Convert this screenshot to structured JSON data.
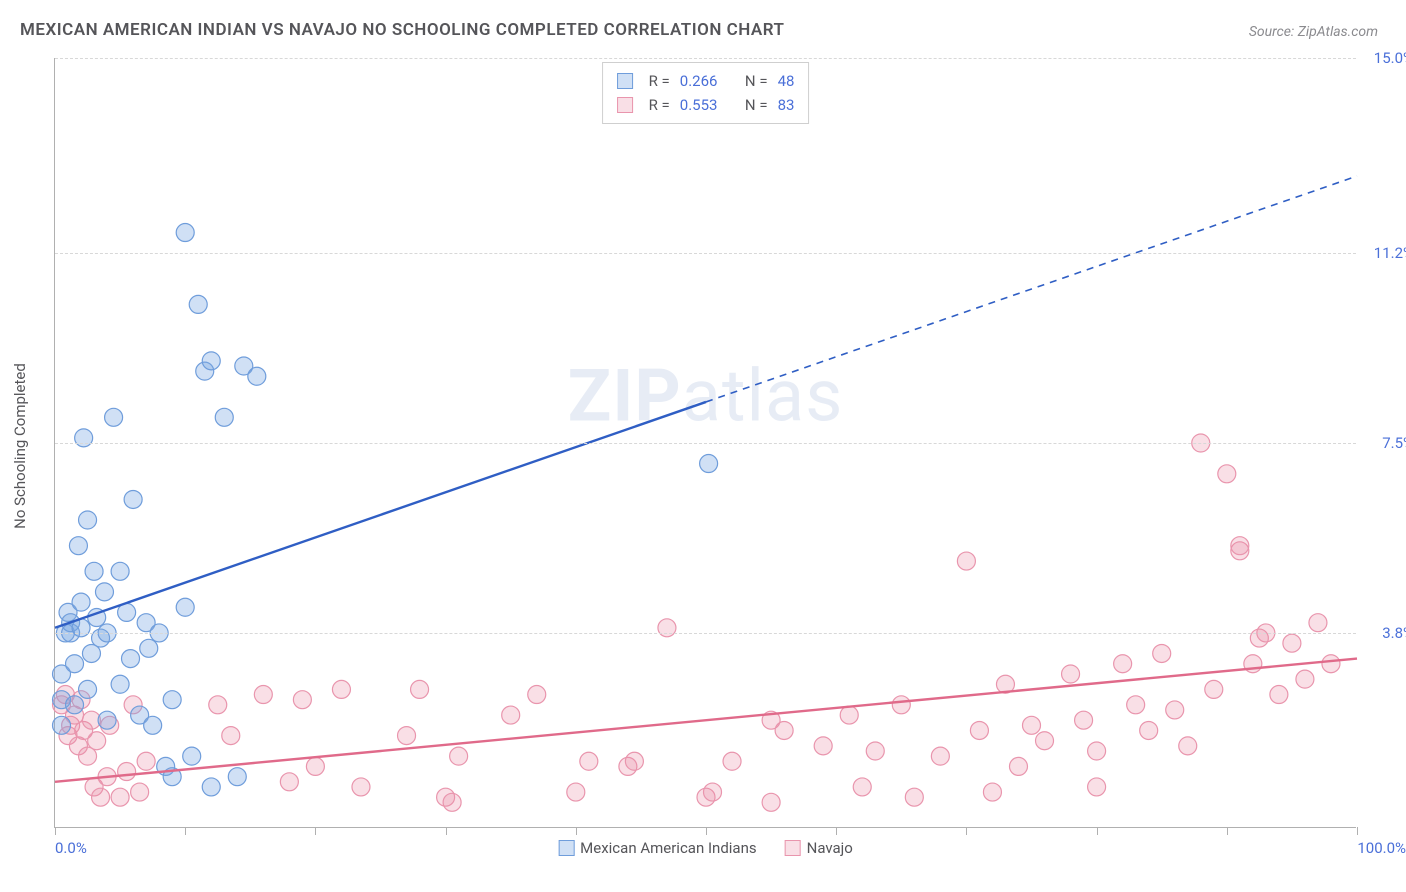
{
  "title": "MEXICAN AMERICAN INDIAN VS NAVAJO NO SCHOOLING COMPLETED CORRELATION CHART",
  "source_label": "Source: ",
  "source_name": "ZipAtlas.com",
  "y_axis_label": "No Schooling Completed",
  "watermark_a": "ZIP",
  "watermark_b": "atlas",
  "chart": {
    "type": "scatter",
    "xlim": [
      0,
      100
    ],
    "ylim": [
      0,
      15
    ],
    "x_left_label": "0.0%",
    "x_right_label": "100.0%",
    "x_tick_positions": [
      0,
      10,
      20,
      30,
      40,
      50,
      60,
      70,
      80,
      90,
      100
    ],
    "y_ticks": [
      {
        "value": 3.8,
        "label": "3.8%"
      },
      {
        "value": 7.5,
        "label": "7.5%"
      },
      {
        "value": 11.2,
        "label": "11.2%"
      },
      {
        "value": 15.0,
        "label": "15.0%"
      }
    ],
    "background_color": "#ffffff",
    "grid_color": "#d8d8d8",
    "axis_color": "#b0b0b0",
    "tick_label_color": "#4a6fd8",
    "marker_radius": 9,
    "marker_stroke_width": 1.2,
    "trend_line_width": 2.4,
    "trend_dash_width": 1.6
  },
  "series": {
    "a": {
      "name": "Mexican American Indians",
      "fill_color": "rgba(120,165,225,0.35)",
      "stroke_color": "#6f9ddb",
      "line_color": "#2f5ec4",
      "stats": {
        "R_label": "R =",
        "R": "0.266",
        "N_label": "N =",
        "N": "48"
      },
      "trend": {
        "x1": 0,
        "y1": 3.9,
        "x2": 50,
        "y2": 8.3,
        "dash_x2": 100,
        "dash_y2": 12.7
      },
      "points": [
        [
          0.5,
          3.0
        ],
        [
          0.5,
          2.5
        ],
        [
          0.5,
          2.0
        ],
        [
          0.8,
          3.8
        ],
        [
          1.0,
          4.2
        ],
        [
          1.2,
          4.0
        ],
        [
          1.2,
          3.8
        ],
        [
          1.5,
          3.2
        ],
        [
          1.5,
          2.4
        ],
        [
          1.8,
          5.5
        ],
        [
          2.0,
          4.4
        ],
        [
          2.0,
          3.9
        ],
        [
          2.2,
          7.6
        ],
        [
          2.5,
          6.0
        ],
        [
          2.5,
          2.7
        ],
        [
          2.8,
          3.4
        ],
        [
          3.0,
          5.0
        ],
        [
          3.2,
          4.1
        ],
        [
          3.5,
          3.7
        ],
        [
          3.8,
          4.6
        ],
        [
          4.0,
          2.1
        ],
        [
          4.0,
          3.8
        ],
        [
          4.5,
          8.0
        ],
        [
          5.0,
          5.0
        ],
        [
          5.0,
          2.8
        ],
        [
          5.5,
          4.2
        ],
        [
          5.8,
          3.3
        ],
        [
          6.0,
          6.4
        ],
        [
          6.5,
          2.2
        ],
        [
          7.0,
          4.0
        ],
        [
          7.2,
          3.5
        ],
        [
          7.5,
          2.0
        ],
        [
          8.0,
          3.8
        ],
        [
          8.5,
          1.2
        ],
        [
          9.0,
          2.5
        ],
        [
          9.0,
          1.0
        ],
        [
          10.0,
          4.3
        ],
        [
          10.0,
          11.6
        ],
        [
          10.5,
          1.4
        ],
        [
          11.0,
          10.2
        ],
        [
          11.5,
          8.9
        ],
        [
          12.0,
          0.8
        ],
        [
          12.0,
          9.1
        ],
        [
          13.0,
          8.0
        ],
        [
          14.0,
          1.0
        ],
        [
          14.5,
          9.0
        ],
        [
          15.5,
          8.8
        ],
        [
          50.2,
          7.1
        ]
      ]
    },
    "b": {
      "name": "Navajo",
      "fill_color": "rgba(235,140,165,0.28)",
      "stroke_color": "#e995ad",
      "line_color": "#e06a8a",
      "stats": {
        "R_label": "R =",
        "R": "0.553",
        "N_label": "N =",
        "N": "83"
      },
      "trend": {
        "x1": 0,
        "y1": 0.9,
        "x2": 100,
        "y2": 3.3
      },
      "points": [
        [
          0.5,
          2.4
        ],
        [
          0.8,
          2.6
        ],
        [
          1.0,
          1.8
        ],
        [
          1.2,
          2.0
        ],
        [
          1.5,
          2.2
        ],
        [
          1.8,
          1.6
        ],
        [
          2.0,
          2.5
        ],
        [
          2.2,
          1.9
        ],
        [
          2.5,
          1.4
        ],
        [
          2.8,
          2.1
        ],
        [
          3.0,
          0.8
        ],
        [
          3.2,
          1.7
        ],
        [
          3.5,
          0.6
        ],
        [
          4.0,
          1.0
        ],
        [
          4.2,
          2.0
        ],
        [
          5.0,
          0.6
        ],
        [
          5.5,
          1.1
        ],
        [
          6.0,
          2.4
        ],
        [
          6.5,
          0.7
        ],
        [
          7.0,
          1.3
        ],
        [
          12.5,
          2.4
        ],
        [
          13.5,
          1.8
        ],
        [
          16.0,
          2.6
        ],
        [
          18.0,
          0.9
        ],
        [
          19.0,
          2.5
        ],
        [
          20.0,
          1.2
        ],
        [
          22.0,
          2.7
        ],
        [
          23.5,
          0.8
        ],
        [
          27.0,
          1.8
        ],
        [
          28.0,
          2.7
        ],
        [
          30.0,
          0.6
        ],
        [
          30.5,
          0.5
        ],
        [
          31.0,
          1.4
        ],
        [
          35.0,
          2.2
        ],
        [
          37.0,
          2.6
        ],
        [
          40.0,
          0.7
        ],
        [
          41.0,
          1.3
        ],
        [
          44.0,
          1.2
        ],
        [
          44.5,
          1.3
        ],
        [
          47.0,
          3.9
        ],
        [
          50.0,
          0.6
        ],
        [
          50.5,
          0.7
        ],
        [
          52.0,
          1.3
        ],
        [
          55.0,
          2.1
        ],
        [
          55.0,
          0.5
        ],
        [
          56.0,
          1.9
        ],
        [
          59.0,
          1.6
        ],
        [
          61.0,
          2.2
        ],
        [
          62.0,
          0.8
        ],
        [
          63.0,
          1.5
        ],
        [
          65.0,
          2.4
        ],
        [
          66.0,
          0.6
        ],
        [
          68.0,
          1.4
        ],
        [
          70.0,
          5.2
        ],
        [
          71.0,
          1.9
        ],
        [
          72.0,
          0.7
        ],
        [
          73.0,
          2.8
        ],
        [
          74.0,
          1.2
        ],
        [
          75.0,
          2.0
        ],
        [
          76.0,
          1.7
        ],
        [
          78.0,
          3.0
        ],
        [
          79.0,
          2.1
        ],
        [
          80.0,
          1.5
        ],
        [
          80.0,
          0.8
        ],
        [
          82.0,
          3.2
        ],
        [
          83.0,
          2.4
        ],
        [
          84.0,
          1.9
        ],
        [
          85.0,
          3.4
        ],
        [
          86.0,
          2.3
        ],
        [
          87.0,
          1.6
        ],
        [
          88.0,
          7.5
        ],
        [
          89.0,
          2.7
        ],
        [
          90.0,
          6.9
        ],
        [
          91.0,
          5.4
        ],
        [
          91.0,
          5.5
        ],
        [
          92.0,
          3.2
        ],
        [
          92.5,
          3.7
        ],
        [
          93.0,
          3.8
        ],
        [
          94.0,
          2.6
        ],
        [
          95.0,
          3.6
        ],
        [
          96.0,
          2.9
        ],
        [
          97.0,
          4.0
        ],
        [
          98.0,
          3.2
        ]
      ]
    }
  },
  "legend_bottom": {
    "a_label": "Mexican American Indians",
    "b_label": "Navajo"
  }
}
